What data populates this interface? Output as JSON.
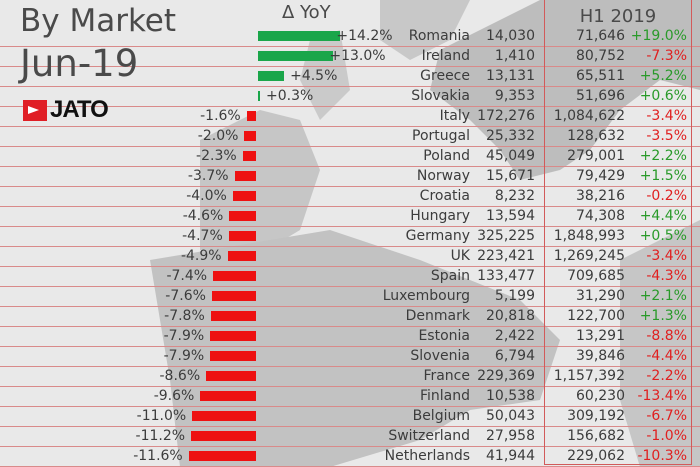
{
  "header": {
    "title": "By Market",
    "period": "Jun-19",
    "logo": "JATO",
    "delta_title": "Δ YoY",
    "h1_title": "H1 2019"
  },
  "colors": {
    "positive": "#1aa64a",
    "negative": "#ee1111",
    "positive_text": "#2a9a2a",
    "negative_text": "#e02020",
    "grid": "#d98a8a"
  },
  "chart_data": {
    "type": "bar",
    "title": "Δ YoY",
    "orientation": "horizontal",
    "categories": [
      "Romania",
      "Ireland",
      "Greece",
      "Slovakia",
      "Italy",
      "Portugal",
      "Poland",
      "Norway",
      "Croatia",
      "Hungary",
      "Germany",
      "UK",
      "Spain",
      "Luxembourg",
      "Denmark",
      "Estonia",
      "Slovenia",
      "France",
      "Finland",
      "Belgium",
      "Switzerland",
      "Netherlands"
    ],
    "values": [
      14.2,
      13.0,
      4.5,
      0.3,
      -1.6,
      -2.0,
      -2.3,
      -3.7,
      -4.0,
      -4.6,
      -4.7,
      -4.9,
      -7.4,
      -7.6,
      -7.8,
      -7.9,
      -7.9,
      -8.6,
      -9.6,
      -11.0,
      -11.2,
      -11.6
    ],
    "labels": [
      "+14.2%",
      "+13.0%",
      "+4.5%",
      "+0.3%",
      "-1.6%",
      "-2.0%",
      "-2.3%",
      "-3.7%",
      "-4.0%",
      "-4.6%",
      "-4.7%",
      "-4.9%",
      "-7.4%",
      "-7.6%",
      "-7.8%",
      "-7.9%",
      "-7.9%",
      "-8.6%",
      "-9.6%",
      "-11.0%",
      "-11.2%",
      "-11.6%"
    ]
  },
  "table": {
    "rows": [
      {
        "country": "Romania",
        "month": "14,030",
        "h1": "71,646",
        "h1_change": "+19.0%"
      },
      {
        "country": "Ireland",
        "month": "1,410",
        "h1": "80,752",
        "h1_change": "-7.3%"
      },
      {
        "country": "Greece",
        "month": "13,131",
        "h1": "65,511",
        "h1_change": "+5.2%"
      },
      {
        "country": "Slovakia",
        "month": "9,353",
        "h1": "51,696",
        "h1_change": "+0.6%"
      },
      {
        "country": "Italy",
        "month": "172,276",
        "h1": "1,084,622",
        "h1_change": "-3.4%"
      },
      {
        "country": "Portugal",
        "month": "25,332",
        "h1": "128,632",
        "h1_change": "-3.5%"
      },
      {
        "country": "Poland",
        "month": "45,049",
        "h1": "279,001",
        "h1_change": "+2.2%"
      },
      {
        "country": "Norway",
        "month": "15,671",
        "h1": "79,429",
        "h1_change": "+1.5%"
      },
      {
        "country": "Croatia",
        "month": "8,232",
        "h1": "38,216",
        "h1_change": "-0.2%"
      },
      {
        "country": "Hungary",
        "month": "13,594",
        "h1": "74,308",
        "h1_change": "+4.4%"
      },
      {
        "country": "Germany",
        "month": "325,225",
        "h1": "1,848,993",
        "h1_change": "+0.5%"
      },
      {
        "country": "UK",
        "month": "223,421",
        "h1": "1,269,245",
        "h1_change": "-3.4%"
      },
      {
        "country": "Spain",
        "month": "133,477",
        "h1": "709,685",
        "h1_change": "-4.3%"
      },
      {
        "country": "Luxembourg",
        "month": "5,199",
        "h1": "31,290",
        "h1_change": "+2.1%"
      },
      {
        "country": "Denmark",
        "month": "20,818",
        "h1": "122,700",
        "h1_change": "+1.3%"
      },
      {
        "country": "Estonia",
        "month": "2,422",
        "h1": "13,291",
        "h1_change": "-8.8%"
      },
      {
        "country": "Slovenia",
        "month": "6,794",
        "h1": "39,846",
        "h1_change": "-4.4%"
      },
      {
        "country": "France",
        "month": "229,369",
        "h1": "1,157,392",
        "h1_change": "-2.2%"
      },
      {
        "country": "Finland",
        "month": "10,538",
        "h1": "60,230",
        "h1_change": "-13.4%"
      },
      {
        "country": "Belgium",
        "month": "50,043",
        "h1": "309,192",
        "h1_change": "-6.7%"
      },
      {
        "country": "Switzerland",
        "month": "27,958",
        "h1": "156,682",
        "h1_change": "-1.0%"
      },
      {
        "country": "Netherlands",
        "month": "41,944",
        "h1": "229,062",
        "h1_change": "-10.3%"
      }
    ]
  }
}
